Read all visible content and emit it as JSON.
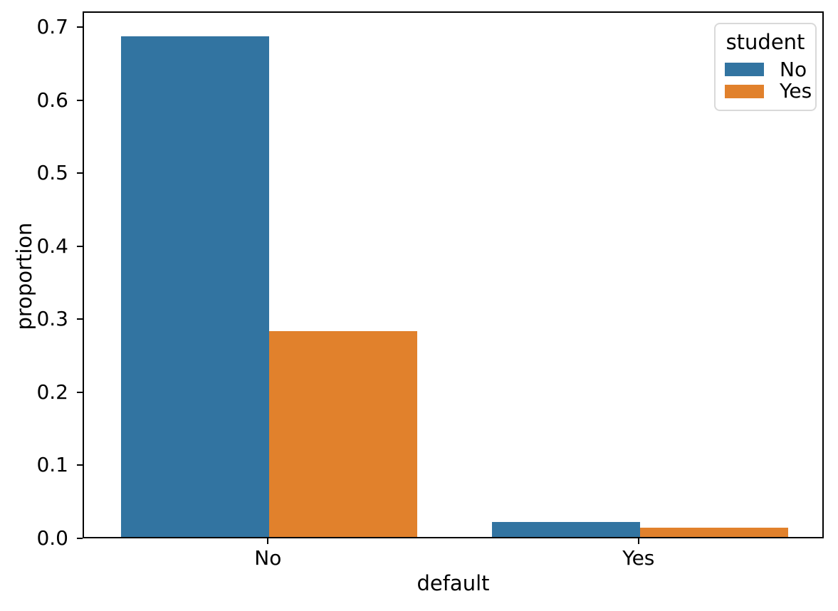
{
  "figure": {
    "background": "#ffffff",
    "axis_color": "#000000",
    "legend_border_color": "#d9d9d9"
  },
  "chart_data": {
    "type": "bar",
    "categories": [
      "No",
      "Yes"
    ],
    "series": [
      {
        "name": "No",
        "color": "#3274a1",
        "values": [
          0.685,
          0.0206
        ]
      },
      {
        "name": "Yes",
        "color": "#e1812c",
        "values": [
          0.2817,
          0.0127
        ]
      }
    ],
    "title": "",
    "xlabel": "default",
    "ylabel": "proportion",
    "ylim": [
      0,
      0.7215
    ],
    "yticks": [
      0.0,
      0.1,
      0.2,
      0.3,
      0.4,
      0.5,
      0.6,
      0.7
    ],
    "ytick_labels": [
      "0.0",
      "0.1",
      "0.2",
      "0.3",
      "0.4",
      "0.5",
      "0.6",
      "0.7"
    ],
    "grid": false,
    "bar_width_data_units": 0.4,
    "legend": {
      "title": "student",
      "entries": [
        "No",
        "Yes"
      ],
      "position": "upper right"
    }
  }
}
